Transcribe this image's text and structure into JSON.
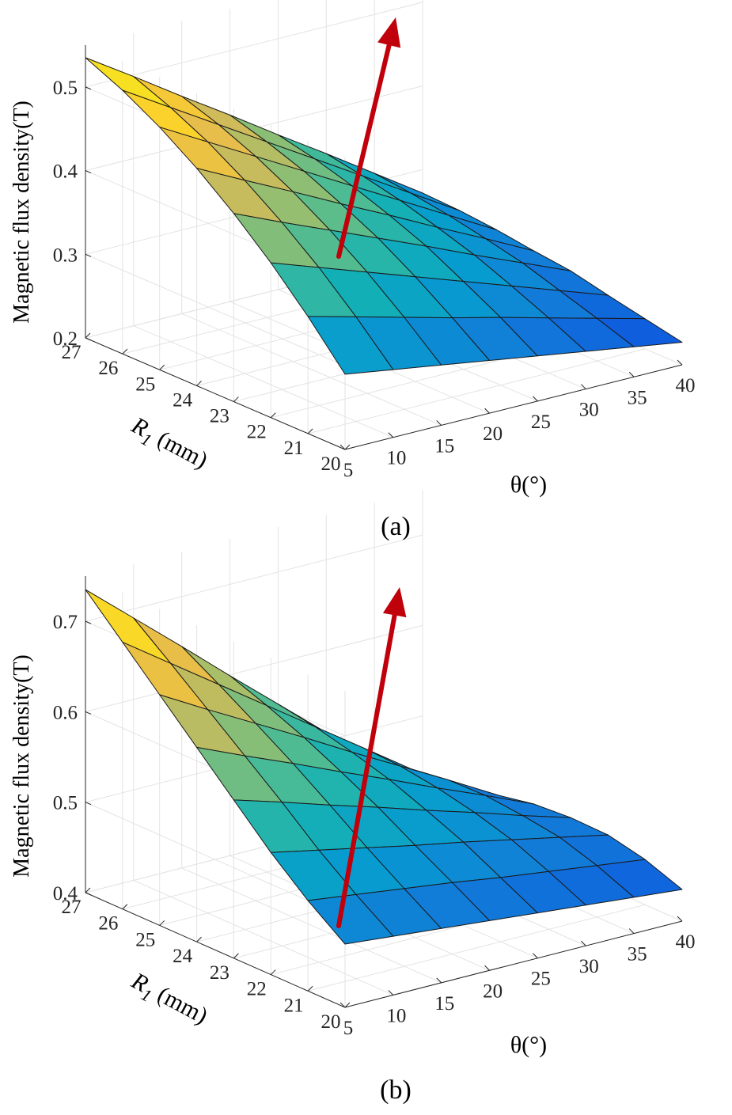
{
  "figure": {
    "caption_a": "(a)",
    "caption_b": "(b)"
  },
  "chart_data": [
    {
      "type": "surface",
      "panel": "(a)",
      "zlabel": "Magnetic flux density(T)",
      "xlabel": "θ(°)",
      "ylabel_main": "R",
      "ylabel_sub": "1",
      "ylabel_unit": " (mm)",
      "x_ticks": [
        "5",
        "10",
        "15",
        "20",
        "25",
        "30",
        "35",
        "40"
      ],
      "y_ticks": [
        "20",
        "21",
        "22",
        "23",
        "24",
        "25",
        "26",
        "27"
      ],
      "z_ticks": [
        "0.2",
        "0.3",
        "0.4",
        "0.5"
      ],
      "x": [
        5,
        10,
        15,
        20,
        25,
        30,
        35,
        40
      ],
      "y": [
        20,
        21,
        22,
        23,
        24,
        25,
        26,
        27
      ],
      "zlim": [
        0.2,
        0.55
      ],
      "colormap": "parula",
      "arrow_color": "#c0000b",
      "z": [
        [
          0.29,
          0.281,
          0.272,
          0.263,
          0.254,
          0.245,
          0.236,
          0.227
        ],
        [
          0.34,
          0.325,
          0.31,
          0.295,
          0.281,
          0.266,
          0.251,
          0.236
        ],
        [
          0.385,
          0.365,
          0.345,
          0.325,
          0.305,
          0.285,
          0.265,
          0.245
        ],
        [
          0.425,
          0.4,
          0.376,
          0.352,
          0.328,
          0.303,
          0.279,
          0.255
        ],
        [
          0.46,
          0.431,
          0.403,
          0.374,
          0.346,
          0.317,
          0.289,
          0.26
        ],
        [
          0.49,
          0.458,
          0.426,
          0.394,
          0.362,
          0.33,
          0.298,
          0.266
        ],
        [
          0.515,
          0.48,
          0.445,
          0.41,
          0.375,
          0.34,
          0.305,
          0.27
        ],
        [
          0.535,
          0.498,
          0.46,
          0.423,
          0.385,
          0.348,
          0.31,
          0.272
        ]
      ]
    },
    {
      "type": "surface",
      "panel": "(b)",
      "zlabel": "Magnetic flux density(T)",
      "xlabel": "θ(°)",
      "ylabel_main": "R",
      "ylabel_sub": "1",
      "ylabel_unit": " (mm)",
      "x_ticks": [
        "5",
        "10",
        "15",
        "20",
        "25",
        "30",
        "35",
        "40"
      ],
      "y_ticks": [
        "20",
        "21",
        "22",
        "23",
        "24",
        "25",
        "26",
        "27"
      ],
      "z_ticks": [
        "0.4",
        "0.5",
        "0.6",
        "0.7"
      ],
      "x": [
        5,
        10,
        15,
        20,
        25,
        30,
        35,
        40
      ],
      "y": [
        20,
        21,
        22,
        23,
        24,
        25,
        26,
        27
      ],
      "zlim": [
        0.4,
        0.75
      ],
      "colormap": "parula",
      "arrow_color": "#c0000b",
      "z": [
        [
          0.47,
          0.465,
          0.46,
          0.455,
          0.45,
          0.445,
          0.44,
          0.435
        ],
        [
          0.5,
          0.493,
          0.486,
          0.479,
          0.471,
          0.464,
          0.457,
          0.45
        ],
        [
          0.535,
          0.524,
          0.513,
          0.502,
          0.492,
          0.481,
          0.47,
          0.459
        ],
        [
          0.575,
          0.559,
          0.542,
          0.526,
          0.509,
          0.493,
          0.476,
          0.46
        ],
        [
          0.615,
          0.592,
          0.57,
          0.547,
          0.525,
          0.502,
          0.48,
          0.457
        ],
        [
          0.655,
          0.625,
          0.596,
          0.567,
          0.537,
          0.508,
          0.479,
          0.449
        ],
        [
          0.695,
          0.658,
          0.621,
          0.584,
          0.547,
          0.51,
          0.473,
          0.436
        ],
        [
          0.735,
          0.69,
          0.645,
          0.599,
          0.554,
          0.509,
          0.464,
          0.418
        ]
      ]
    }
  ]
}
